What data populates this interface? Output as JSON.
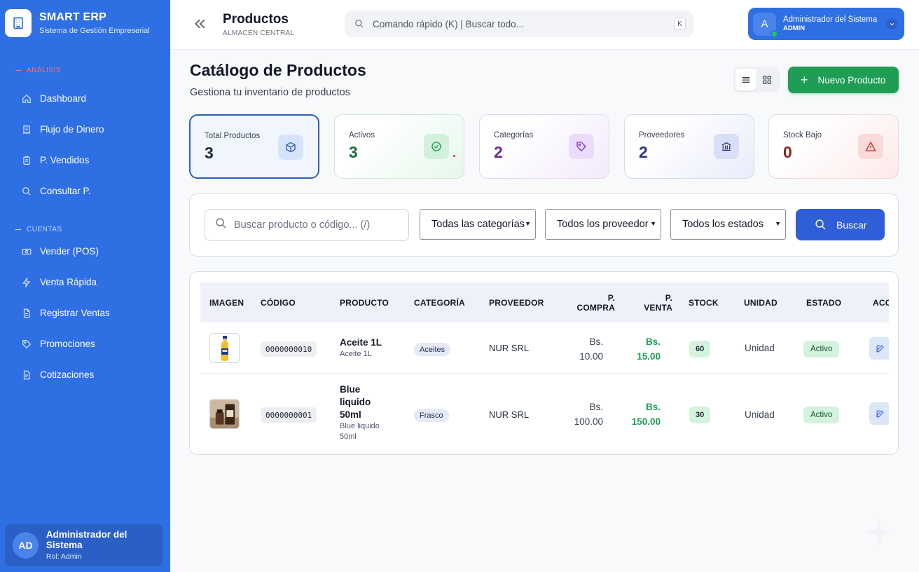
{
  "brand": {
    "name": "SMART ERP",
    "subtitle": "Sistema de Gestión Empreserial"
  },
  "sidebar": {
    "section_analisis": "ANÁLISIS",
    "section_cuentas": "CUENTAS",
    "items": [
      {
        "label": "Dashboard",
        "icon": "home-icon"
      },
      {
        "label": "Flujo de Dinero",
        "icon": "receipt-icon"
      },
      {
        "label": "P. Vendidos",
        "icon": "clipboard-icon"
      },
      {
        "label": "Consultar P.",
        "icon": "search-icon"
      },
      {
        "label": "Vender (POS)",
        "icon": "cash-icon"
      },
      {
        "label": "Venta Rápida",
        "icon": "bolt-icon"
      },
      {
        "label": "Registrar Ventas",
        "icon": "file-icon"
      },
      {
        "label": "Promociones",
        "icon": "tag-icon"
      },
      {
        "label": "Cotizaciones",
        "icon": "document-icon"
      }
    ],
    "user": {
      "initials": "AD",
      "name": "Administrador del Sistema",
      "role": "Rol: Admin"
    }
  },
  "header": {
    "title": "Productos",
    "subtitle": "ALMACEN CENTRAL",
    "search_placeholder": "Comando rápido (K) | Buscar todo...",
    "search_kbd": "K",
    "user": {
      "initial": "A",
      "name": "Administrador del Sistema",
      "role": "ADMIN"
    }
  },
  "main": {
    "title": "Catálogo de Productos",
    "subtitle": "Gestiona tu inventario de productos",
    "new_button": "Nuevo Producto",
    "stats": {
      "total": {
        "label": "Total Productos",
        "value": "3"
      },
      "activos": {
        "label": "Activos",
        "value": "3"
      },
      "categorias": {
        "label": "Categorías",
        "value": "2"
      },
      "proveedores": {
        "label": "Proveedores",
        "value": "2"
      },
      "stock_bajo": {
        "label": "Stock Bajo",
        "value": "0"
      }
    },
    "filters": {
      "search_placeholder": "Buscar producto o código... (/)",
      "category": "Todas las categorías",
      "supplier": "Todos los proveedor",
      "status": "Todos los estados",
      "search_button": "Buscar"
    },
    "table": {
      "headers": {
        "imagen": "IMAGEN",
        "codigo": "CÓDIGO",
        "producto": "PRODUCTO",
        "categoria": "CATEGORÍA",
        "proveedor": "PROVEEDOR",
        "p_compra_1": "P.",
        "p_compra_2": "COMPRA",
        "p_venta_1": "P.",
        "p_venta_2": "VENTA",
        "stock": "STOCK",
        "unidad": "UNIDAD",
        "estado": "ESTADO",
        "acciones": "ACC"
      },
      "rows": [
        {
          "code": "0000000010",
          "name": "Aceite 1L",
          "desc": "Aceite 1L",
          "category": "Aceites",
          "supplier": "NUR SRL",
          "buy_currency": "Bs.",
          "buy_amount": "10.00",
          "sell_currency": "Bs.",
          "sell_amount": "15.00",
          "stock": "60",
          "unit": "Unidad",
          "status": "Activo"
        },
        {
          "code": "0000000001",
          "name_1": "Blue",
          "name_2": "liquido",
          "name_3": "50ml",
          "desc_1": "Blue liquido",
          "desc_2": "50ml",
          "category": "Frasco",
          "supplier": "NUR SRL",
          "buy_currency": "Bs.",
          "buy_amount": "100.00",
          "sell_currency": "Bs.",
          "sell_amount": "150.00",
          "stock": "30",
          "unit": "Unidad",
          "status": "Activo"
        }
      ]
    }
  },
  "colors": {
    "sidebar": "#2f6fe4",
    "primary_button": "#2f5fd8",
    "success": "#1f9d55"
  }
}
